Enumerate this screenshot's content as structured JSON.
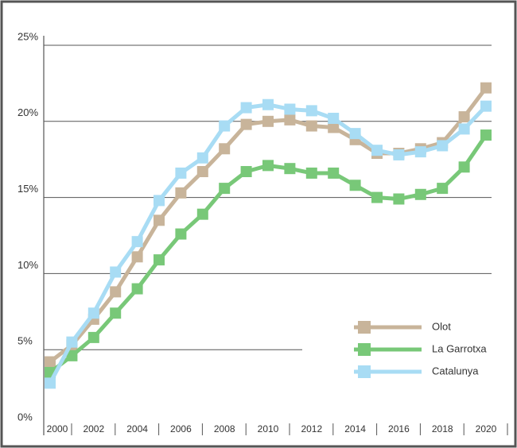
{
  "chart_data": {
    "type": "line",
    "x": [
      2000,
      2001,
      2002,
      2003,
      2004,
      2005,
      2006,
      2007,
      2008,
      2009,
      2010,
      2011,
      2012,
      2013,
      2014,
      2015,
      2016,
      2017,
      2018,
      2019,
      2020
    ],
    "series": [
      {
        "name": "Olot",
        "color": "#c8b49a",
        "values": [
          4.2,
          5.3,
          7.0,
          8.8,
          11.1,
          13.5,
          15.3,
          16.7,
          18.2,
          19.8,
          20.0,
          20.1,
          19.7,
          19.6,
          18.8,
          17.9,
          17.9,
          18.2,
          18.6,
          20.3,
          22.2
        ]
      },
      {
        "name": "La Garrotxa",
        "color": "#78c878",
        "values": [
          3.5,
          4.6,
          5.8,
          7.4,
          9.0,
          10.9,
          12.6,
          13.9,
          15.6,
          16.7,
          17.1,
          16.9,
          16.6,
          16.6,
          15.8,
          15.0,
          14.9,
          15.2,
          15.6,
          17.0,
          19.1
        ]
      },
      {
        "name": "Catalunya",
        "color": "#a8dcf4",
        "values": [
          2.8,
          5.5,
          7.4,
          10.1,
          12.1,
          14.8,
          16.6,
          17.6,
          19.7,
          20.9,
          21.1,
          20.8,
          20.7,
          20.2,
          19.2,
          18.1,
          17.8,
          18.0,
          18.4,
          19.5,
          21.0
        ]
      }
    ],
    "xlim": [
      2000,
      2020
    ],
    "xticks": [
      2000,
      2002,
      2004,
      2006,
      2008,
      2010,
      2012,
      2014,
      2016,
      2018,
      2020
    ],
    "ylim": [
      0,
      25
    ],
    "yticks": [
      {
        "value": 0,
        "label": "0%"
      },
      {
        "value": 5,
        "label": "5%"
      },
      {
        "value": 10,
        "label": "10%"
      },
      {
        "value": 15,
        "label": "15%"
      },
      {
        "value": 20,
        "label": "20%"
      },
      {
        "value": 25,
        "label": "25%"
      }
    ],
    "grid": true,
    "legend": "lower right"
  }
}
